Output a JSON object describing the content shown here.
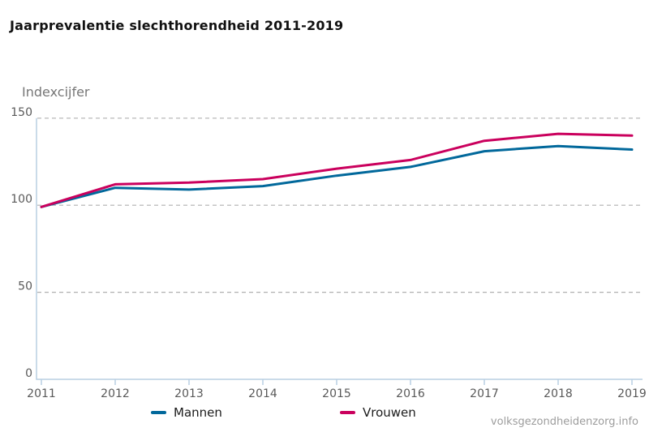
{
  "title": "Jaarprevalentie slechthorendheid 2011-2019",
  "y_axis_label": "Indexcijfer",
  "watermark": "volksgezondheidenzorg.info",
  "legend": {
    "items": [
      "Mannen",
      "Vrouwen"
    ]
  },
  "chart_data": {
    "type": "line",
    "title": "Jaarprevalentie slechthorendheid 2011-2019",
    "ylabel": "Indexcijfer",
    "xlabel": "",
    "x": [
      "2011",
      "2012",
      "2013",
      "2014",
      "2015",
      "2016",
      "2017",
      "2018",
      "2019"
    ],
    "yticks": [
      0,
      50,
      100,
      150
    ],
    "ylim": [
      0,
      155
    ],
    "grid": "horizontal-dashed",
    "legend_position": "bottom",
    "series": [
      {
        "name": "Mannen",
        "color": "#01689b",
        "values": [
          99,
          110,
          109,
          111,
          117,
          122,
          131,
          134,
          132
        ]
      },
      {
        "name": "Vrouwen",
        "color": "#ca005d",
        "values": [
          99,
          112,
          113,
          115,
          121,
          126,
          137,
          141,
          140
        ]
      }
    ],
    "colors": {
      "axis": "#b8cfe2",
      "grid": "#b0b0b0",
      "tick_label": "#595959",
      "title": "#111111",
      "ylabel": "#767676",
      "watermark": "#9c9c9c"
    }
  }
}
